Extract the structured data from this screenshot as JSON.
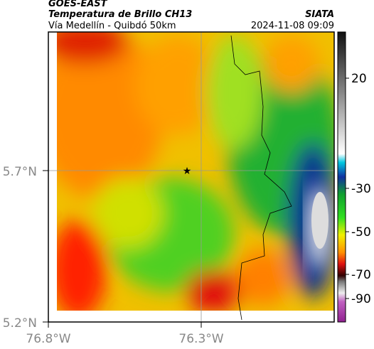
{
  "header": {
    "title": "GOES-EAST",
    "subtitle": "Temperatura de Brillo CH13",
    "location": "Vía Medellín - Quibdó 50km",
    "source": "SIATA",
    "datetime": "2024-11-08 09:09"
  },
  "map": {
    "lat_labels": [
      "5.7°N",
      "5.2°N"
    ],
    "lon_labels": [
      "76.8°W",
      "76.3°W"
    ]
  },
  "colorbar": {
    "ticks": [
      "20",
      "-30",
      "-50",
      "-70",
      "-90"
    ]
  }
}
